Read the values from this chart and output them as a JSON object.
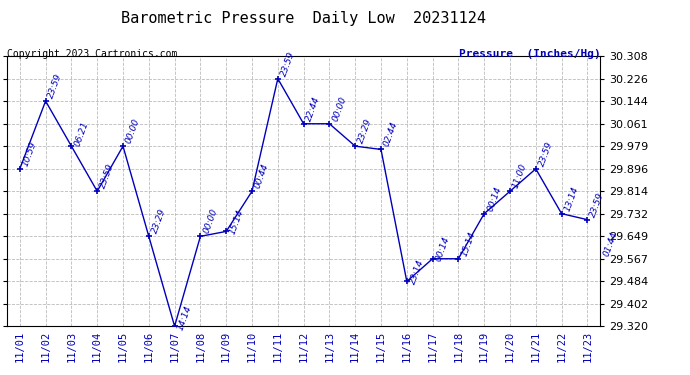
{
  "title": "Barometric Pressure  Daily Low  20231124",
  "copyright": "Copyright 2023 Cartronics.com",
  "ylabel": "Pressure  (Inches/Hg)",
  "background_color": "#ffffff",
  "line_color": "#0000bb",
  "text_color": "#0000bb",
  "grid_color": "#bbbbbb",
  "ytick_color": "#000000",
  "ylim_min": 29.32,
  "ylim_max": 30.308,
  "yticks": [
    29.32,
    29.402,
    29.484,
    29.567,
    29.649,
    29.732,
    29.814,
    29.896,
    29.979,
    30.061,
    30.144,
    30.226,
    30.308
  ],
  "dates": [
    "11/01",
    "11/02",
    "11/03",
    "11/04",
    "11/05",
    "11/06",
    "11/07",
    "11/08",
    "11/09",
    "11/10",
    "11/11",
    "11/12",
    "11/13",
    "11/14",
    "11/15",
    "11/16",
    "11/17",
    "11/18",
    "11/19",
    "11/20",
    "11/21",
    "11/22",
    "11/23"
  ],
  "values": [
    29.896,
    30.144,
    29.979,
    29.814,
    29.979,
    29.649,
    29.32,
    29.649,
    29.667,
    29.814,
    30.226,
    30.061,
    30.061,
    29.979,
    29.967,
    29.484,
    29.567,
    29.567,
    29.732,
    29.814,
    29.896,
    29.732,
    29.71
  ],
  "point_labels": [
    "10:59",
    "23:59",
    "06:21",
    "23:59",
    "00:00",
    "23:29",
    "14:14",
    "00:00",
    "15:14",
    "00:44",
    "23:59",
    "22:44",
    "00:00",
    "23:29",
    "02:44",
    "23:14",
    "00:14",
    "15:14",
    "00:14",
    "11:00",
    "23:59",
    "13:14",
    "23:59"
  ],
  "extra_last_label": "01:44"
}
